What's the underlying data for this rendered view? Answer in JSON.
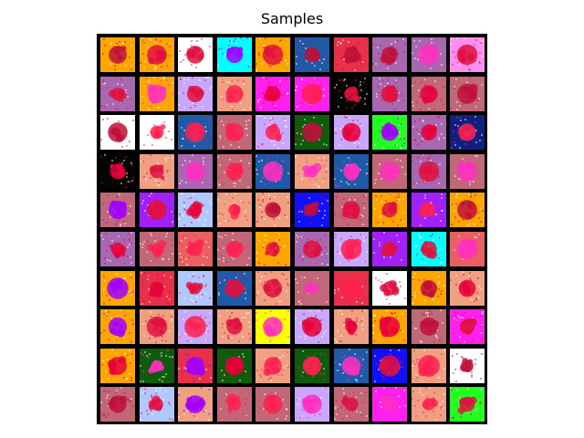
{
  "title": "Samples",
  "colors": {
    "frame": "#000000",
    "palette": {
      "orange": "#ffa500",
      "purple": "#a868b0",
      "white": "#ffffff",
      "cyan": "#00ffff",
      "navy": "#1e5aa8",
      "red": "#e8304a",
      "pink": "#ff90f0",
      "magenta": "#ff20f0",
      "lavender": "#c8a8ff",
      "salmon": "#f0a080",
      "rose": "#c06878",
      "green": "#0c5c0c",
      "lime": "#20ff20",
      "black": "#050505",
      "violet": "#a020ff",
      "blue": "#1010ff",
      "yellow": "#ffff00",
      "teal": "#102080",
      "coral": "#e86060",
      "lightblue": "#b0c8ff"
    }
  },
  "grid": {
    "rows": 10,
    "cols": 10,
    "tiles": [
      [
        "orange",
        "orange",
        "white",
        "cyan",
        "orange",
        "navy",
        "red",
        "purple",
        "purple",
        "pink"
      ],
      [
        "purple",
        "orange",
        "lavender",
        "salmon",
        "magenta",
        "magenta",
        "black",
        "purple",
        "rose",
        "rose"
      ],
      [
        "white",
        "white",
        "navy",
        "rose",
        "lavender",
        "green",
        "lavender",
        "lime",
        "purple",
        "teal"
      ],
      [
        "black",
        "salmon",
        "purple",
        "rose",
        "navy",
        "salmon",
        "navy",
        "rose",
        "purple",
        "rose"
      ],
      [
        "rose",
        "violet",
        "lightblue",
        "salmon",
        "salmon",
        "blue",
        "rose",
        "orange",
        "violet",
        "orange"
      ],
      [
        "purple",
        "rose",
        "coral",
        "rose",
        "orange",
        "purple",
        "lavender",
        "violet",
        "cyan",
        "coral"
      ],
      [
        "orange",
        "red",
        "lightblue",
        "navy",
        "salmon",
        "rose",
        "red",
        "white",
        "orange",
        "salmon"
      ],
      [
        "orange",
        "salmon",
        "lavender",
        "salmon",
        "yellow",
        "lavender",
        "salmon",
        "orange",
        "rose",
        "magenta"
      ],
      [
        "orange",
        "green",
        "red",
        "green",
        "salmon",
        "green",
        "navy",
        "blue",
        "salmon",
        "white"
      ],
      [
        "rose",
        "lightblue",
        "salmon",
        "rose",
        "rose",
        "lavender",
        "rose",
        "magenta",
        "salmon",
        "lime"
      ]
    ]
  }
}
